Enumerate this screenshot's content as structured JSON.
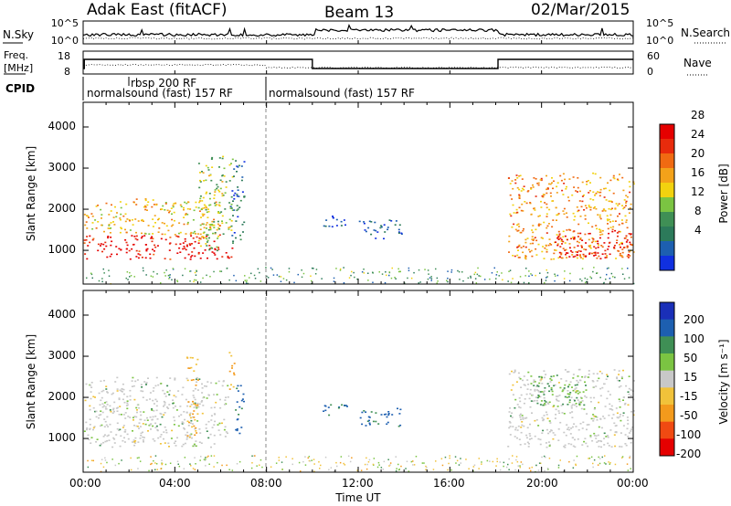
{
  "header": {
    "radar": "Adak East (fitACF)",
    "beam": "Beam 13",
    "date": "02/Mar/2015"
  },
  "noise_panel": {
    "left_label": "N.Sky",
    "left_ticks": [
      "10^5",
      "10^0"
    ],
    "right_ticks": [
      "10^5",
      "10^0"
    ],
    "right_label": "N.Search"
  },
  "freq_panel": {
    "left_label_top": "Freq.",
    "left_label_bottom": "[MHz]",
    "left_ticks": [
      "18",
      "8"
    ],
    "right_ticks": [
      "60",
      "0"
    ],
    "right_label": "Nave"
  },
  "cpid": {
    "label": "CPID",
    "segments": [
      {
        "text": "normalsound (fast) 157 RF",
        "start_hour": 0.0
      },
      {
        "text": "rbsp 200 RF",
        "start_hour": 1.7
      },
      {
        "text": "normalsound (fast) 157 RF",
        "start_hour": 8.0
      }
    ]
  },
  "colors": {
    "power": [
      "#1030e0",
      "#1d5fb0",
      "#2c7a5a",
      "#3f8f55",
      "#7bc442",
      "#f2d20f",
      "#f3a21a",
      "#f06a12",
      "#e82b0c",
      "#e50000"
    ],
    "velocity": [
      "#e50000",
      "#f04a12",
      "#f39a1c",
      "#f1c23a",
      "#c8c8c8",
      "#7bc442",
      "#3f8f55",
      "#1d5fb0",
      "#1a2fb8"
    ]
  },
  "colorbars": {
    "power": {
      "label": "Power [dB]",
      "ticks": [
        "4",
        "8",
        "12",
        "16",
        "20",
        "24",
        "28"
      ]
    },
    "velocity": {
      "label": "Velocity [m s⁻¹]",
      "ticks": [
        "-200",
        "-100",
        "-50",
        "-15",
        "15",
        "50",
        "100",
        "200"
      ]
    }
  },
  "axes": {
    "ylabel": "Slant Range [km]",
    "yticks": [
      "1000",
      "2000",
      "3000",
      "4000"
    ],
    "xlabel": "Time UT",
    "xticks": [
      "00:00",
      "04:00",
      "08:00",
      "12:00",
      "16:00",
      "20:00",
      "00:00"
    ]
  },
  "chart_data": [
    {
      "type": "heatmap",
      "name": "Power",
      "x_range_hours": [
        0,
        24
      ],
      "y_range_km": [
        180,
        4600
      ],
      "colorbar_range": [
        0,
        30
      ],
      "colorbar_unit": "dB",
      "regions": [
        {
          "t": [
            0.0,
            6.5
          ],
          "km": [
            800,
            1400
          ],
          "level": 28
        },
        {
          "t": [
            0.0,
            6.0
          ],
          "km": [
            1400,
            2200
          ],
          "level": 18
        },
        {
          "t": [
            2.2,
            3.2
          ],
          "km": [
            2000,
            2300
          ],
          "level": 22
        },
        {
          "t": [
            5.0,
            6.5
          ],
          "km": [
            1000,
            3300
          ],
          "level": 14
        },
        {
          "t": [
            6.4,
            7.0
          ],
          "km": [
            1200,
            3200
          ],
          "level": 6
        },
        {
          "t": [
            10.4,
            11.6
          ],
          "km": [
            1550,
            1850
          ],
          "level": 4
        },
        {
          "t": [
            12.0,
            13.9
          ],
          "km": [
            1300,
            1750
          ],
          "level": 4
        },
        {
          "t": [
            18.5,
            24.0
          ],
          "km": [
            800,
            2900
          ],
          "level": 20
        },
        {
          "t": [
            20.5,
            24.0
          ],
          "km": [
            800,
            1500
          ],
          "level": 28
        }
      ]
    },
    {
      "type": "heatmap",
      "name": "Velocity",
      "x_range_hours": [
        0,
        24
      ],
      "y_range_km": [
        180,
        4600
      ],
      "colorbar_range": [
        -200,
        200
      ],
      "colorbar_unit": "m s⁻¹",
      "regions": [
        {
          "t": [
            0.0,
            6.3
          ],
          "km": [
            800,
            2500
          ],
          "level": 0
        },
        {
          "t": [
            2.3,
            3.2
          ],
          "km": [
            1300,
            2000
          ],
          "level": 0
        },
        {
          "t": [
            4.5,
            5.0
          ],
          "km": [
            1000,
            3000
          ],
          "level": -50
        },
        {
          "t": [
            6.3,
            6.6
          ],
          "km": [
            2200,
            3200
          ],
          "level": -50
        },
        {
          "t": [
            6.6,
            7.0
          ],
          "km": [
            1100,
            2400
          ],
          "level": 200
        },
        {
          "t": [
            10.4,
            11.6
          ],
          "km": [
            1550,
            1850
          ],
          "level": 200
        },
        {
          "t": [
            12.0,
            13.9
          ],
          "km": [
            1300,
            1750
          ],
          "level": 200
        },
        {
          "t": [
            18.5,
            24.0
          ],
          "km": [
            800,
            2700
          ],
          "level": 0
        },
        {
          "t": [
            19.5,
            22.0
          ],
          "km": [
            1800,
            2600
          ],
          "level": 50
        }
      ]
    }
  ]
}
